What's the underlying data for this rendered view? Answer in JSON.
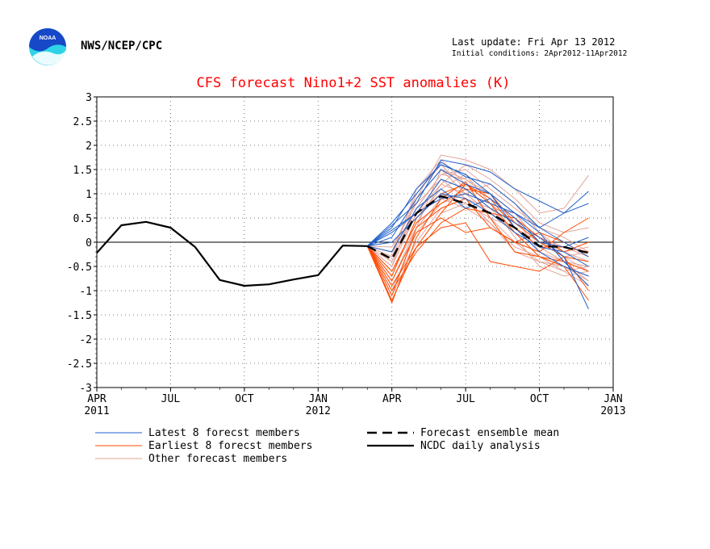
{
  "header": {
    "org": "NWS/NCEP/CPC",
    "last_update": "Last update: Fri Apr 13 2012",
    "initial_conditions": "Initial conditions: 2Apr2012-11Apr2012",
    "logo_text": "NOAA"
  },
  "colors": {
    "title": "#ff0000",
    "latest": "#1f5fc8",
    "earliest": "#ff4a00",
    "other": "#e2a59a",
    "observed": "#000000",
    "mean": "#000000",
    "logo_blue": "#1648c8",
    "logo_cyan": "#2fd3e8"
  },
  "chart_data": {
    "type": "line",
    "title": "CFS forecast Nino1+2 SST anomalies (K)",
    "xlabel": "",
    "ylabel": "",
    "x_unit": "month (Apr 2011 = 0)",
    "xlim": [
      0,
      21
    ],
    "ylim": [
      -3,
      3
    ],
    "grid": true,
    "y_ticks": [
      "-3",
      "-2.5",
      "-2",
      "-1.5",
      "-1",
      "-0.5",
      "0",
      "0.5",
      "1",
      "1.5",
      "2",
      "2.5",
      "3"
    ],
    "x_ticks": [
      {
        "label": "APR",
        "year": "2011",
        "x": 0
      },
      {
        "label": "JUL",
        "year": "",
        "x": 3
      },
      {
        "label": "OCT",
        "year": "",
        "x": 6
      },
      {
        "label": "JAN",
        "year": "2012",
        "x": 9
      },
      {
        "label": "APR",
        "year": "",
        "x": 12
      },
      {
        "label": "JUL",
        "year": "",
        "x": 15
      },
      {
        "label": "OCT",
        "year": "",
        "x": 18
      },
      {
        "label": "JAN",
        "year": "2013",
        "x": 21
      }
    ],
    "legend": [
      {
        "name": "Latest 8 forecst members",
        "style": "latest"
      },
      {
        "name": "Earliest 8 forecst members",
        "style": "earliest"
      },
      {
        "name": "Other forecast members",
        "style": "other"
      },
      {
        "name": "Forecast ensemble mean",
        "style": "mean"
      },
      {
        "name": "NCDC daily analysis",
        "style": "observed"
      }
    ],
    "observed": {
      "x": [
        0,
        1,
        2,
        3,
        4,
        5,
        6,
        7,
        8,
        9,
        10,
        11
      ],
      "y": [
        -0.22,
        0.35,
        0.42,
        0.3,
        -0.1,
        -0.78,
        -0.9,
        -0.87,
        -0.77,
        -0.68,
        -0.07,
        -0.08
      ]
    },
    "ensemble_mean": {
      "x": [
        11,
        12,
        13,
        14,
        15,
        16,
        17,
        18,
        19,
        20
      ],
      "y": [
        -0.08,
        -0.35,
        0.6,
        0.95,
        0.8,
        0.6,
        0.3,
        -0.08,
        -0.1,
        -0.22
      ]
    },
    "member_x": [
      11,
      12,
      13,
      14,
      15,
      16,
      17,
      18,
      19,
      20
    ],
    "latest_members": [
      [
        -0.08,
        0.35,
        0.8,
        1.7,
        1.6,
        1.45,
        1.1,
        0.85,
        0.6,
        0.8
      ],
      [
        -0.08,
        0.4,
        1.0,
        1.65,
        1.35,
        1.2,
        0.8,
        0.3,
        0.6,
        1.05
      ],
      [
        -0.08,
        0.25,
        0.6,
        1.3,
        1.1,
        0.7,
        0.4,
        0.1,
        -0.3,
        -1.38
      ],
      [
        -0.08,
        0.1,
        0.9,
        1.5,
        1.2,
        1.0,
        0.6,
        0.2,
        -0.4,
        -0.9
      ],
      [
        -0.08,
        0.0,
        0.5,
        1.0,
        0.9,
        0.6,
        0.2,
        -0.1,
        -0.2,
        -0.5
      ],
      [
        -0.08,
        -0.2,
        0.7,
        1.1,
        0.7,
        0.9,
        0.5,
        0.0,
        -0.1,
        0.1
      ],
      [
        -0.08,
        0.3,
        1.1,
        1.6,
        1.4,
        1.0,
        0.3,
        -0.2,
        -0.5,
        -0.7
      ],
      [
        -0.08,
        0.2,
        0.6,
        0.9,
        1.0,
        0.8,
        0.6,
        0.3,
        0.0,
        -0.3
      ]
    ],
    "earliest_members": [
      [
        -0.08,
        -1.2,
        -0.1,
        0.6,
        1.2,
        0.8,
        0.2,
        -0.3,
        -0.5,
        -1.2
      ],
      [
        -0.08,
        -1.25,
        0.1,
        0.9,
        1.25,
        0.5,
        -0.2,
        -0.3,
        -0.4,
        -0.6
      ],
      [
        -0.08,
        -1.1,
        0.3,
        0.7,
        0.9,
        0.3,
        0.0,
        -0.2,
        0.2,
        0.5
      ],
      [
        -0.08,
        -0.9,
        -0.1,
        0.3,
        0.4,
        -0.4,
        -0.5,
        -0.6,
        -0.3,
        -1.0
      ],
      [
        -0.08,
        -0.6,
        0.4,
        0.8,
        1.1,
        1.0,
        0.4,
        0.0,
        -0.3,
        -0.4
      ],
      [
        -0.08,
        -0.8,
        0.2,
        0.5,
        0.2,
        0.3,
        0.0,
        0.2,
        0.0,
        -0.3
      ],
      [
        -0.08,
        -1.0,
        -0.2,
        0.4,
        0.7,
        0.6,
        0.5,
        0.1,
        -0.2,
        0.0
      ],
      [
        -0.08,
        -0.7,
        0.5,
        1.0,
        1.2,
        0.9,
        0.3,
        -0.1,
        -0.1,
        -0.2
      ]
    ],
    "other_members": [
      [
        -0.08,
        -0.5,
        0.9,
        1.8,
        1.7,
        1.5,
        1.1,
        0.6,
        0.7,
        1.38
      ],
      [
        -0.08,
        -0.3,
        0.7,
        1.4,
        1.5,
        1.1,
        0.7,
        0.3,
        0.1,
        -0.2
      ],
      [
        -0.08,
        -0.6,
        0.4,
        1.2,
        1.0,
        0.6,
        0.3,
        0.0,
        -0.3,
        -0.6
      ],
      [
        -0.08,
        -0.4,
        0.6,
        1.0,
        0.8,
        0.5,
        0.0,
        -0.4,
        -0.6,
        -0.5
      ],
      [
        -0.08,
        -0.8,
        0.3,
        1.5,
        1.3,
        0.9,
        0.5,
        -0.2,
        -0.4,
        -0.8
      ],
      [
        -0.08,
        -0.2,
        1.0,
        1.6,
        1.1,
        0.7,
        0.2,
        -0.3,
        -0.5,
        -0.7
      ],
      [
        -0.08,
        -1.0,
        0.2,
        0.8,
        1.0,
        1.2,
        0.8,
        0.2,
        -0.2,
        -0.4
      ],
      [
        -0.08,
        -0.1,
        0.8,
        1.3,
        0.9,
        0.4,
        -0.1,
        -0.3,
        -0.6,
        -0.9
      ],
      [
        -0.08,
        -0.7,
        0.5,
        1.1,
        1.4,
        0.8,
        0.4,
        0.1,
        -0.1,
        -0.3
      ],
      [
        -0.08,
        -0.3,
        1.1,
        1.7,
        1.2,
        0.8,
        0.1,
        -0.5,
        -0.7,
        -0.6
      ],
      [
        -0.08,
        -0.9,
        0.0,
        0.7,
        0.9,
        0.7,
        0.6,
        0.0,
        -0.3,
        -0.2
      ],
      [
        -0.08,
        -0.5,
        0.6,
        1.2,
        1.6,
        1.3,
        0.9,
        0.4,
        0.2,
        0.3
      ],
      [
        -0.08,
        -0.2,
        0.9,
        1.5,
        1.0,
        0.6,
        0.2,
        -0.1,
        -0.4,
        -0.5
      ],
      [
        -0.08,
        -0.6,
        0.3,
        0.9,
        0.7,
        0.4,
        -0.2,
        -0.4,
        -0.5,
        -0.8
      ],
      [
        -0.08,
        -0.4,
        0.7,
        1.4,
        1.3,
        1.0,
        0.6,
        0.0,
        -0.2,
        -0.1
      ],
      [
        -0.08,
        -1.1,
        -0.1,
        0.6,
        0.8,
        0.5,
        0.3,
        -0.1,
        -0.4,
        -0.6
      ]
    ]
  }
}
